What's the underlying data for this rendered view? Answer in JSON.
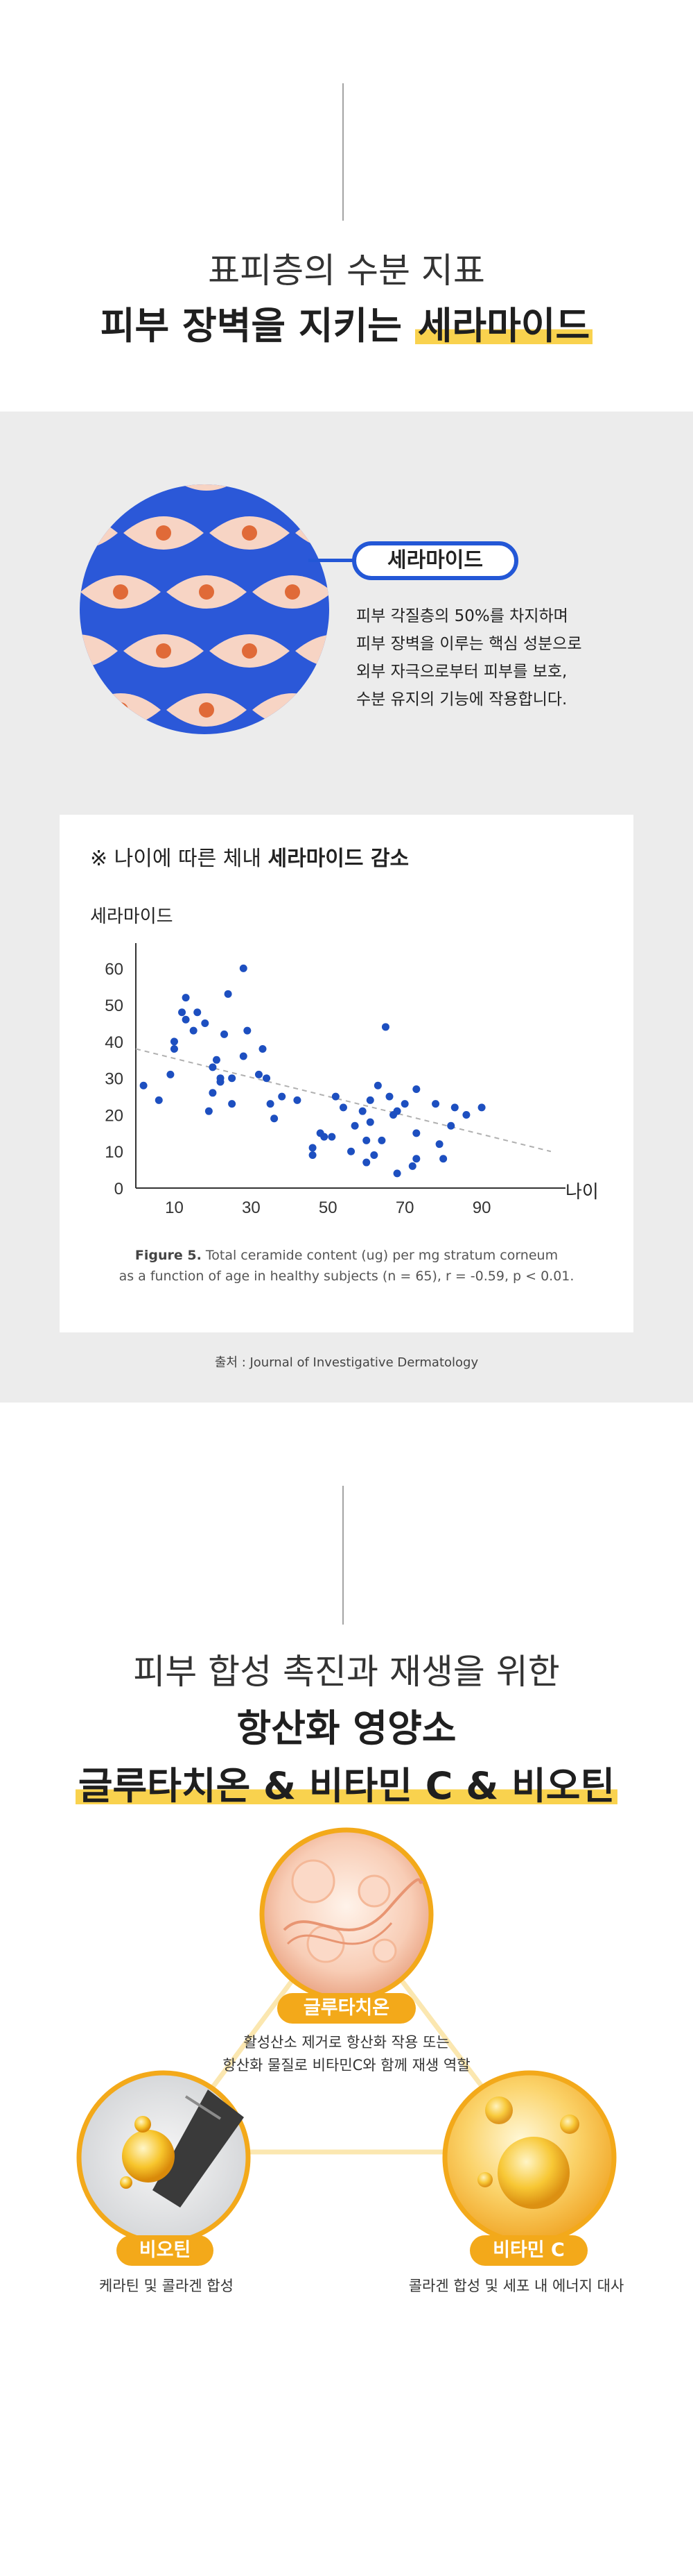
{
  "intro": {
    "line1": "표피층의 수분 지표",
    "line2_prefix": "피부 장벽을 지키는 ",
    "line2_highlight": "세라마이드"
  },
  "ceramide": {
    "label": "세라마이드",
    "desc": [
      "피부 각질층의 50%를 차지하며",
      "피부 장벽을 이루는 핵심 성분으로",
      "외부 자극으로부터 피부를 보호,",
      "수분 유지의 기능에 작용합니다."
    ]
  },
  "chart_title": {
    "prefix": "※ 나이에 따른 체내 ",
    "bold": "세라마이드 감소"
  },
  "chart_data": {
    "type": "scatter",
    "xlabel": "나이",
    "ylabel": "세라마이드",
    "xlim": [
      0,
      110
    ],
    "ylim": [
      0,
      65
    ],
    "xticks": [
      "10",
      "30",
      "50",
      "70",
      "90"
    ],
    "yticks": [
      "0",
      "10",
      "20",
      "30",
      "40",
      "50",
      "60"
    ],
    "points": [
      [
        2,
        28
      ],
      [
        6,
        24
      ],
      [
        9,
        31
      ],
      [
        10,
        38
      ],
      [
        10,
        40
      ],
      [
        12,
        48
      ],
      [
        13,
        52
      ],
      [
        13,
        46
      ],
      [
        15,
        43
      ],
      [
        16,
        48
      ],
      [
        18,
        45
      ],
      [
        19,
        21
      ],
      [
        20,
        26
      ],
      [
        20,
        33
      ],
      [
        21,
        35
      ],
      [
        22,
        29
      ],
      [
        22,
        30
      ],
      [
        23,
        42
      ],
      [
        24,
        53
      ],
      [
        25,
        23
      ],
      [
        25,
        30
      ],
      [
        28,
        36
      ],
      [
        28,
        60
      ],
      [
        29,
        43
      ],
      [
        32,
        31
      ],
      [
        33,
        38
      ],
      [
        34,
        30
      ],
      [
        35,
        23
      ],
      [
        36,
        19
      ],
      [
        38,
        25
      ],
      [
        42,
        24
      ],
      [
        46,
        9
      ],
      [
        46,
        11
      ],
      [
        48,
        15
      ],
      [
        49,
        14
      ],
      [
        51,
        14
      ],
      [
        52,
        25
      ],
      [
        54,
        22
      ],
      [
        56,
        10
      ],
      [
        57,
        17
      ],
      [
        59,
        21
      ],
      [
        60,
        7
      ],
      [
        60,
        13
      ],
      [
        61,
        18
      ],
      [
        61,
        24
      ],
      [
        62,
        9
      ],
      [
        63,
        28
      ],
      [
        64,
        13
      ],
      [
        65,
        44
      ],
      [
        66,
        25
      ],
      [
        67,
        20
      ],
      [
        68,
        4
      ],
      [
        68,
        21
      ],
      [
        70,
        23
      ],
      [
        72,
        6
      ],
      [
        73,
        8
      ],
      [
        73,
        15
      ],
      [
        73,
        27
      ],
      [
        78,
        23
      ],
      [
        79,
        12
      ],
      [
        80,
        8
      ],
      [
        82,
        17
      ],
      [
        83,
        22
      ],
      [
        86,
        20
      ],
      [
        90,
        22
      ]
    ],
    "trend": [
      [
        0,
        38
      ],
      [
        108,
        10
      ]
    ],
    "caption_bold": "Figure 5.",
    "caption_line1": "Total ceramide content (ug) per mg stratum corneum",
    "caption_line2": "as a function of age in healthy subjects (n = 65), r = -0.59, p < 0.01."
  },
  "source": "출처 : Journal of Investigative Dermatology",
  "antioxidant": {
    "line1": "피부 합성 촉진과 재생을 위한",
    "line2": "항산화 영양소",
    "line3": "글루타치온 & 비타민 C & 비오틴"
  },
  "nutrients": {
    "glutathione": {
      "label": "글루타치온",
      "desc": [
        "활성산소 제거로 항산화 작용 또는",
        "항산화 물질로 비타민C와 함께 재생 역할"
      ]
    },
    "biotin": {
      "label": "비오틴",
      "desc": [
        "케라틴 및 콜라겐 합성"
      ]
    },
    "vitamin_c": {
      "label": "비타민 C",
      "desc": [
        "콜라겐 합성 및 세포 내 에너지 대사"
      ]
    }
  },
  "colors": {
    "accent_blue": "#2357d6",
    "accent_yellow": "#f3a91a",
    "highlight": "#f9d24e",
    "dot_blue": "#1d4fc0"
  }
}
